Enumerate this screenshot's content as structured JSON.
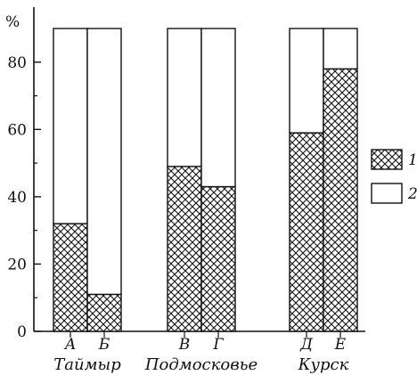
{
  "chart_data": {
    "type": "bar",
    "stacked": true,
    "unit_label": "%",
    "ylim": [
      0,
      90
    ],
    "y_ticks": [
      "0",
      "20",
      "40",
      "60",
      "80"
    ],
    "y_tick_values": [
      0,
      20,
      40,
      60,
      80
    ],
    "categories": [
      "А",
      "Б",
      "В",
      "Г",
      "Д",
      "Е"
    ],
    "groups": [
      {
        "label": "Таймыр",
        "categories": [
          "А",
          "Б"
        ]
      },
      {
        "label": "Подмосковье",
        "categories": [
          "В",
          "Г"
        ]
      },
      {
        "label": "Курск",
        "categories": [
          "Д",
          "Е"
        ]
      }
    ],
    "series": [
      {
        "name": "1",
        "pattern": "crosshatch",
        "values": [
          32,
          11,
          49,
          43,
          59,
          78
        ]
      },
      {
        "name": "2",
        "pattern": "white",
        "values": [
          58,
          79,
          41,
          47,
          31,
          12
        ]
      }
    ],
    "legend_position": "right",
    "grid": false
  }
}
